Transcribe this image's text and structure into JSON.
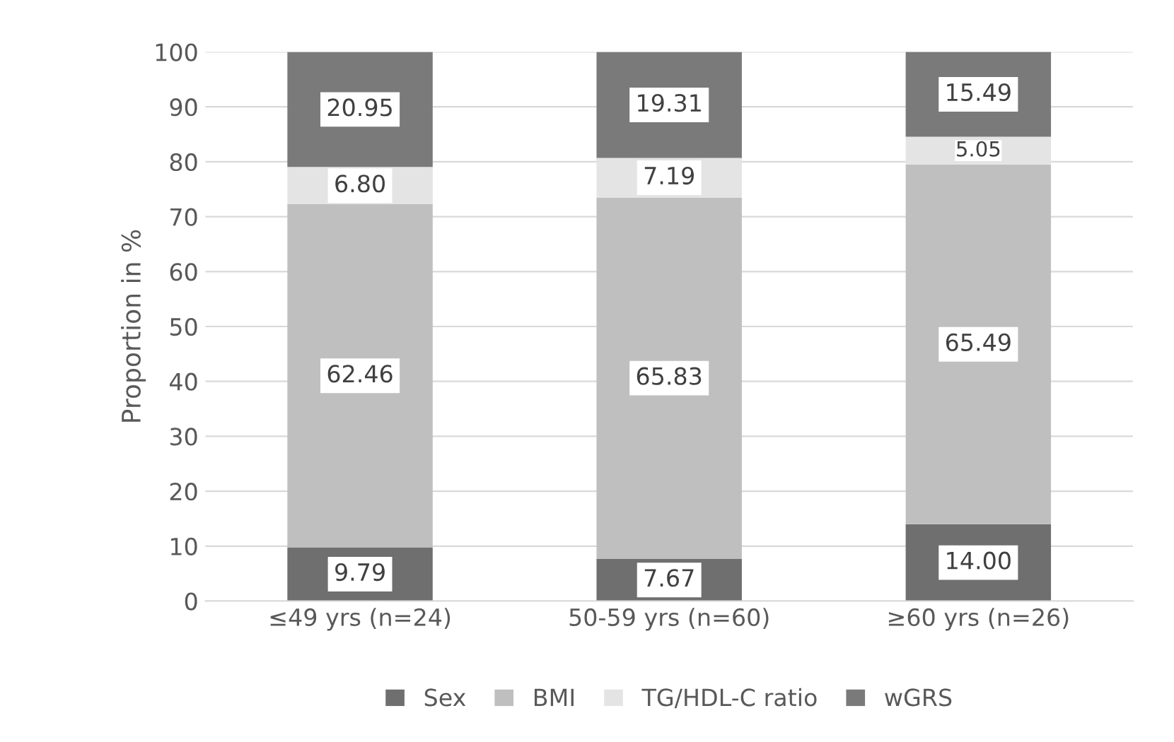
{
  "chart_data": {
    "type": "bar",
    "stacked": true,
    "ylabel": "Proportion in %",
    "categories": [
      "≤49 yrs (n=24)",
      "50-59 yrs (n=60)",
      "≥60 yrs (n=26)"
    ],
    "series": [
      {
        "name": "Sex",
        "color": "#6f6f6f",
        "values": [
          9.79,
          7.67,
          14.0
        ],
        "value_labels": [
          "9.79",
          "7.67",
          "14.00"
        ]
      },
      {
        "name": "BMI",
        "color": "#bfbfbf",
        "values": [
          62.46,
          65.83,
          65.49
        ],
        "value_labels": [
          "62.46",
          "65.83",
          "65.49"
        ]
      },
      {
        "name": "TG/HDL-C ratio",
        "color": "#e4e4e4",
        "values": [
          6.8,
          7.19,
          5.05
        ],
        "value_labels": [
          "6.80",
          "7.19",
          "5.05"
        ]
      },
      {
        "name": "wGRS",
        "color": "#7a7a7a",
        "values": [
          20.95,
          19.31,
          15.49
        ],
        "value_labels": [
          "20.95",
          "19.31",
          "15.49"
        ]
      }
    ],
    "ylim": [
      0,
      100
    ],
    "yticks": [
      0,
      10,
      20,
      30,
      40,
      50,
      60,
      70,
      80,
      90,
      100
    ],
    "grid": "y",
    "legend": "bottom"
  }
}
